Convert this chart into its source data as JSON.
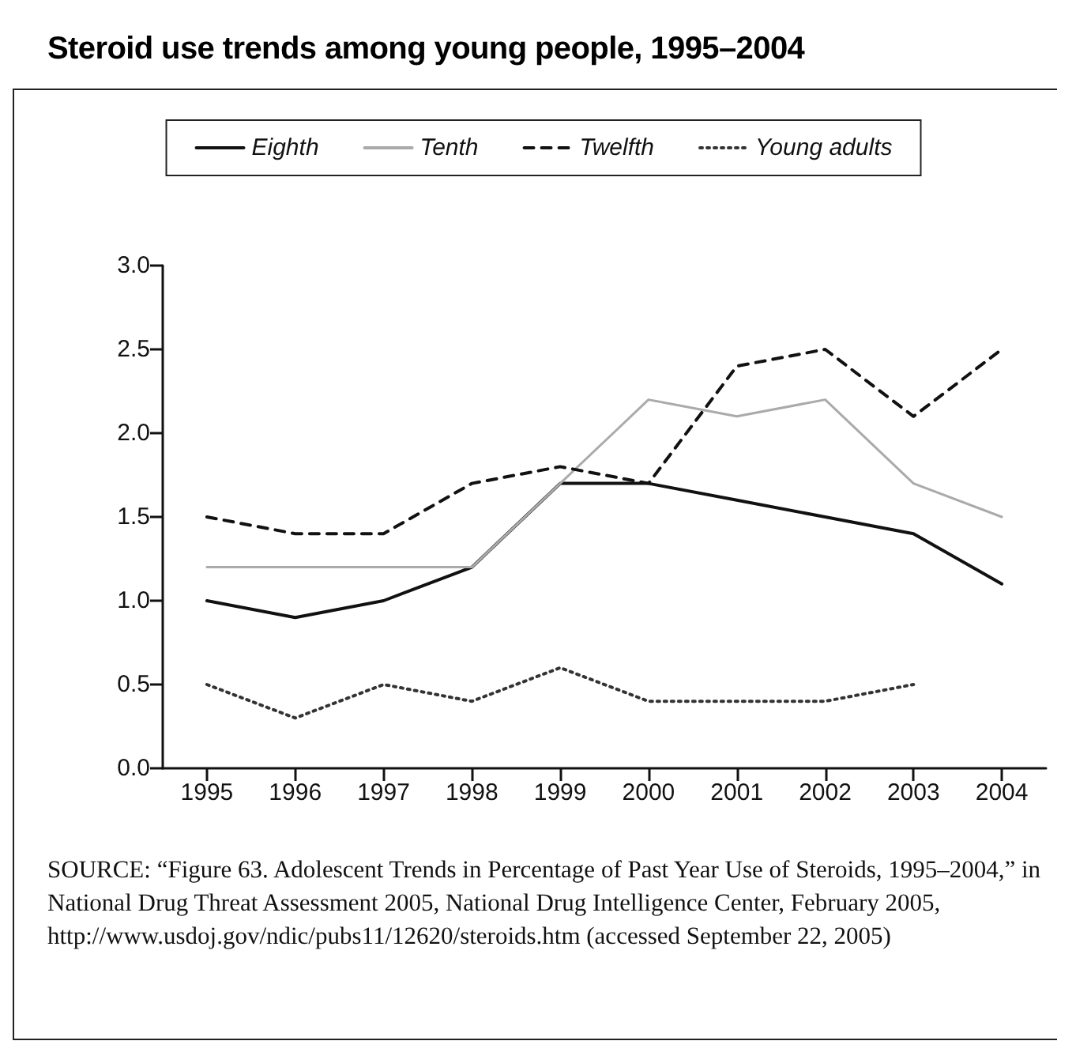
{
  "chart_data": {
    "type": "line",
    "title": "Steroid use trends among young people, 1995–2004",
    "categories": [
      "1995",
      "1996",
      "1997",
      "1998",
      "1999",
      "2000",
      "2001",
      "2002",
      "2003",
      "2004"
    ],
    "series": [
      {
        "name": "Eighth",
        "color": "#111111",
        "line_style": "solid",
        "values": [
          1.0,
          0.9,
          1.0,
          1.2,
          1.7,
          1.7,
          1.6,
          1.5,
          1.4,
          1.1
        ]
      },
      {
        "name": "Tenth",
        "color": "#aaaaaa",
        "line_style": "solid",
        "values": [
          1.2,
          1.2,
          1.2,
          1.2,
          1.7,
          2.2,
          2.1,
          2.2,
          1.7,
          1.5
        ]
      },
      {
        "name": "Twelfth",
        "color": "#111111",
        "line_style": "dashed",
        "values": [
          1.5,
          1.4,
          1.4,
          1.7,
          1.8,
          1.7,
          2.4,
          2.5,
          2.1,
          2.5
        ]
      },
      {
        "name": "Young adults",
        "color": "#333333",
        "line_style": "dotted",
        "values": [
          0.5,
          0.3,
          0.5,
          0.4,
          0.6,
          0.4,
          0.4,
          0.4,
          0.5,
          null
        ]
      }
    ],
    "ylim": [
      0,
      3
    ],
    "yticks": [
      {
        "value": 0,
        "label": "0.0"
      },
      {
        "value": 0.5,
        "label": "0.5"
      },
      {
        "value": 1,
        "label": "1.0"
      },
      {
        "value": 1.5,
        "label": "1.5"
      },
      {
        "value": 2,
        "label": "2.0"
      },
      {
        "value": 2.5,
        "label": "2.5"
      },
      {
        "value": 3,
        "label": "3.0"
      }
    ],
    "grid": false,
    "legend": "top",
    "marker": "none",
    "annotations": [
      "SOURCE: “Figure 63. Adolescent Trends in Percentage of Past Year Use of Steroids, 1995–2004,” in National Drug Threat Assessment 2005, National Drug Intelligence Center, February 2005, http://www.usdoj.gov/ndic/pubs11/12620/steroids.htm (accessed September 22, 2005)"
    ]
  }
}
